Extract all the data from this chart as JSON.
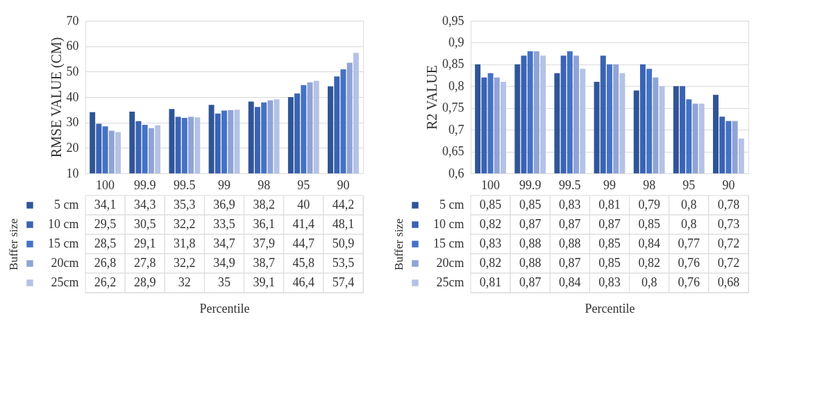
{
  "chart_data": [
    {
      "type": "bar",
      "ylabel": "RMSE VALUE (CM)",
      "xlabel": "Percentile",
      "legend_title": "Buffer size",
      "legend": "bottom left",
      "grid": "y",
      "categories": [
        "100",
        "99.9",
        "99.5",
        "99",
        "98",
        "95",
        "90"
      ],
      "ylim": [
        10,
        70
      ],
      "yticks": [
        10,
        20,
        30,
        40,
        50,
        60,
        70
      ],
      "series": [
        {
          "name": "5 cm",
          "color": "#2f5597",
          "values": [
            34.1,
            34.3,
            35.3,
            36.9,
            38.2,
            40,
            44.2
          ],
          "value_labels": [
            "34,1",
            "34,3",
            "35,3",
            "36,9",
            "38,2",
            "40",
            "44,2"
          ]
        },
        {
          "name": "10 cm",
          "color": "#3a63b4",
          "values": [
            29.5,
            30.5,
            32.2,
            33.5,
            36.1,
            41.4,
            48.1
          ],
          "value_labels": [
            "29,5",
            "30,5",
            "32,2",
            "33,5",
            "36,1",
            "41,4",
            "48,1"
          ]
        },
        {
          "name": "15 cm",
          "color": "#4472c4",
          "values": [
            28.5,
            29.1,
            31.8,
            34.7,
            37.9,
            44.7,
            50.9
          ],
          "value_labels": [
            "28,5",
            "29,1",
            "31,8",
            "34,7",
            "37,9",
            "44,7",
            "50,9"
          ]
        },
        {
          "name": "20cm",
          "color": "#8fa3d6",
          "values": [
            26.8,
            27.8,
            32.2,
            34.9,
            38.7,
            45.8,
            53.5
          ],
          "value_labels": [
            "26,8",
            "27,8",
            "32,2",
            "34,9",
            "38,7",
            "45,8",
            "53,5"
          ]
        },
        {
          "name": "25cm",
          "color": "#b4c2e6",
          "values": [
            26.2,
            28.9,
            32,
            35,
            39.1,
            46.4,
            57.4
          ],
          "value_labels": [
            "26,2",
            "28,9",
            "32",
            "35",
            "39,1",
            "46,4",
            "57,4"
          ]
        }
      ]
    },
    {
      "type": "bar",
      "ylabel": "R2 VALUE",
      "xlabel": "Percentile",
      "legend_title": "Buffer size",
      "legend": "bottom left",
      "grid": "y",
      "categories": [
        "100",
        "99.9",
        "99.5",
        "99",
        "98",
        "95",
        "90"
      ],
      "ylim": [
        0.6,
        0.95
      ],
      "yticks": [
        {
          "value": 0.6,
          "label": "0,6"
        },
        {
          "value": 0.65,
          "label": "0,65"
        },
        {
          "value": 0.7,
          "label": "0,7"
        },
        {
          "value": 0.75,
          "label": "0,75"
        },
        {
          "value": 0.8,
          "label": "0,8"
        },
        {
          "value": 0.85,
          "label": "0,85"
        },
        {
          "value": 0.9,
          "label": "0,9"
        },
        {
          "value": 0.95,
          "label": "0,95"
        }
      ],
      "series": [
        {
          "name": "5 cm",
          "color": "#2f5597",
          "values": [
            0.85,
            0.85,
            0.83,
            0.81,
            0.79,
            0.8,
            0.78
          ],
          "value_labels": [
            "0,85",
            "0,85",
            "0,83",
            "0,81",
            "0,79",
            "0,8",
            "0,78"
          ]
        },
        {
          "name": "10 cm",
          "color": "#3a63b4",
          "values": [
            0.82,
            0.87,
            0.87,
            0.87,
            0.85,
            0.8,
            0.73
          ],
          "value_labels": [
            "0,82",
            "0,87",
            "0,87",
            "0,87",
            "0,85",
            "0,8",
            "0,73"
          ]
        },
        {
          "name": "15 cm",
          "color": "#4472c4",
          "values": [
            0.83,
            0.88,
            0.88,
            0.85,
            0.84,
            0.77,
            0.72
          ],
          "value_labels": [
            "0,83",
            "0,88",
            "0,88",
            "0,85",
            "0,84",
            "0,77",
            "0,72"
          ]
        },
        {
          "name": "20cm",
          "color": "#8fa3d6",
          "values": [
            0.82,
            0.88,
            0.87,
            0.85,
            0.82,
            0.76,
            0.72
          ],
          "value_labels": [
            "0,82",
            "0,88",
            "0,87",
            "0,85",
            "0,82",
            "0,76",
            "0,72"
          ]
        },
        {
          "name": "25cm",
          "color": "#b4c2e6",
          "values": [
            0.81,
            0.87,
            0.84,
            0.83,
            0.8,
            0.76,
            0.68
          ],
          "value_labels": [
            "0,81",
            "0,87",
            "0,84",
            "0,83",
            "0,8",
            "0,76",
            "0,68"
          ]
        }
      ]
    }
  ]
}
